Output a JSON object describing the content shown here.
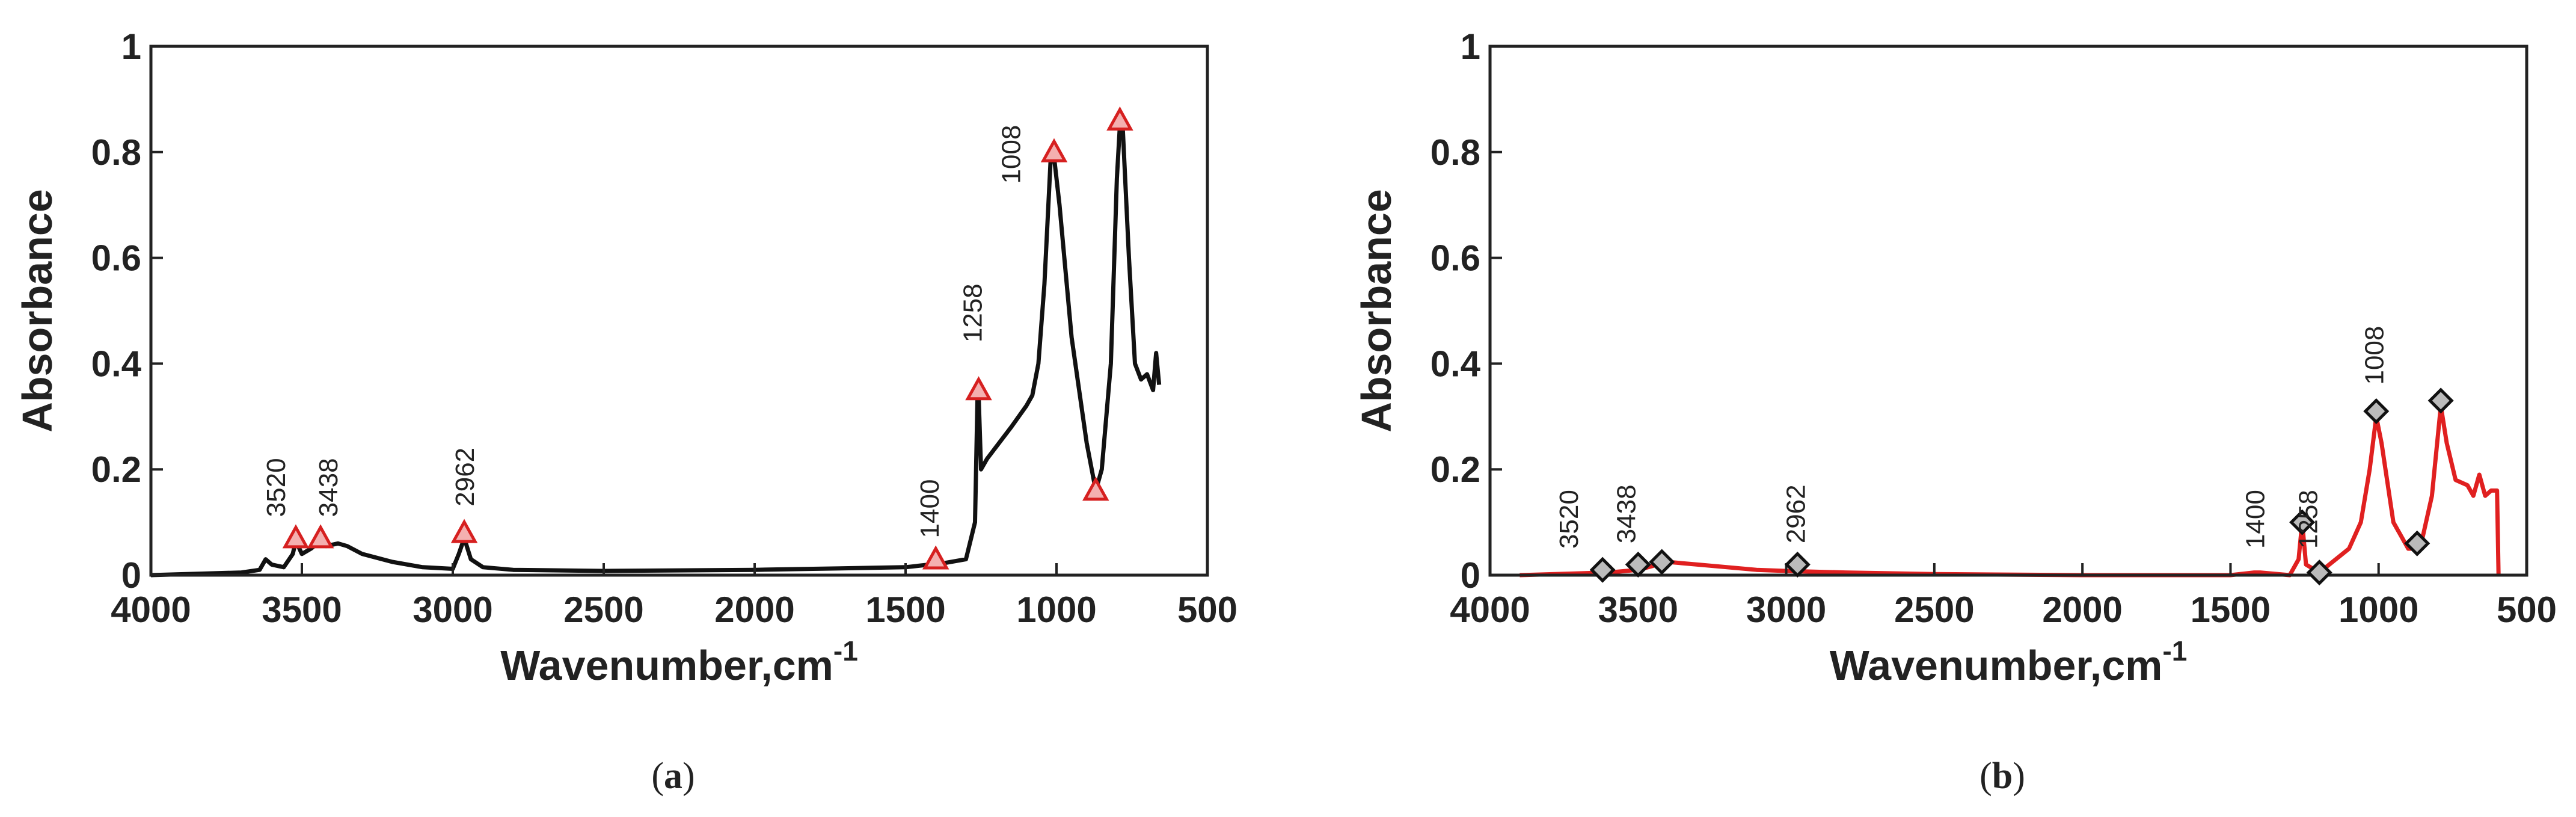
{
  "chart_data": [
    {
      "type": "line",
      "caption": "a",
      "ylabel": "Absorbance",
      "xlabel": "Wavenumber,cm",
      "xlabel_superscript": "-1",
      "xlim": [
        4000,
        500
      ],
      "ylim": [
        0,
        1
      ],
      "xticks": [
        4000,
        3500,
        3000,
        2500,
        2000,
        1500,
        1000,
        500
      ],
      "yticks": [
        0,
        0.2,
        0.4,
        0.6,
        0.8,
        1
      ],
      "series": [
        {
          "color": "#111111",
          "x": [
            4000,
            3700,
            3640,
            3620,
            3600,
            3560,
            3530,
            3520,
            3500,
            3470,
            3438,
            3420,
            3380,
            3350,
            3300,
            3200,
            3100,
            3000,
            2980,
            2962,
            2940,
            2900,
            2800,
            2500,
            2000,
            1500,
            1420,
            1400,
            1300,
            1270,
            1262,
            1258,
            1250,
            1230,
            1150,
            1100,
            1080,
            1060,
            1040,
            1020,
            1008,
            990,
            950,
            900,
            870,
            850,
            820,
            800,
            790,
            780,
            760,
            740,
            720,
            700,
            680,
            670,
            660
          ],
          "values": [
            0,
            0.005,
            0.01,
            0.03,
            0.02,
            0.015,
            0.04,
            0.065,
            0.04,
            0.05,
            0.065,
            0.055,
            0.06,
            0.055,
            0.04,
            0.025,
            0.015,
            0.012,
            0.04,
            0.07,
            0.03,
            0.015,
            0.01,
            0.008,
            0.01,
            0.015,
            0.02,
            0.02,
            0.03,
            0.1,
            0.33,
            0.34,
            0.2,
            0.22,
            0.28,
            0.32,
            0.34,
            0.4,
            0.55,
            0.78,
            0.79,
            0.7,
            0.45,
            0.25,
            0.16,
            0.2,
            0.4,
            0.75,
            0.85,
            0.84,
            0.6,
            0.4,
            0.37,
            0.38,
            0.35,
            0.42,
            0.36
          ]
        }
      ],
      "markers": {
        "shape": "triangle",
        "color": "#d62020",
        "fill": "#f4b0b0",
        "x": [
          3520,
          3438,
          2962,
          1400,
          1258,
          1008,
          870,
          790
        ],
        "values": [
          0.07,
          0.07,
          0.08,
          0.03,
          0.35,
          0.8,
          0.16,
          0.86
        ]
      },
      "annotations": [
        {
          "text": "3520",
          "x": 3586,
          "y": 0.11
        },
        {
          "text": "3438",
          "x": 3412,
          "y": 0.11
        },
        {
          "text": "2962",
          "x": 2960,
          "y": 0.13
        },
        {
          "text": "1400",
          "x": 1420,
          "y": 0.07
        },
        {
          "text": "1258",
          "x": 1278,
          "y": 0.44
        },
        {
          "text": "1008",
          "x": 1150,
          "y": 0.74
        }
      ]
    },
    {
      "type": "line",
      "caption": "b",
      "ylabel": "Absorbance",
      "xlabel": "Wavenumber,cm",
      "xlabel_superscript": "-1",
      "xlim": [
        4000,
        500
      ],
      "ylim": [
        0,
        1
      ],
      "xticks": [
        4000,
        3500,
        3000,
        2500,
        2000,
        1500,
        1000,
        500
      ],
      "yticks": [
        0,
        0.2,
        0.4,
        0.6,
        0.8,
        1
      ],
      "series": [
        {
          "color": "#e02020",
          "x": [
            3900,
            3600,
            3500,
            3400,
            3300,
            3100,
            3000,
            2800,
            2500,
            2000,
            1500,
            1420,
            1400,
            1300,
            1270,
            1258,
            1245,
            1200,
            1100,
            1060,
            1030,
            1008,
            990,
            950,
            900,
            860,
            820,
            790,
            770,
            740,
            700,
            680,
            660,
            640,
            620,
            600,
            595
          ],
          "values": [
            0,
            0.005,
            0.01,
            0.025,
            0.02,
            0.01,
            0.008,
            0.005,
            0.002,
            0,
            0,
            0.005,
            0.005,
            0,
            0.03,
            0.1,
            0.02,
            0.005,
            0.05,
            0.1,
            0.2,
            0.3,
            0.25,
            0.1,
            0.05,
            0.05,
            0.15,
            0.32,
            0.25,
            0.18,
            0.17,
            0.15,
            0.19,
            0.15,
            0.16,
            0.16,
            0
          ]
        }
      ],
      "markers": {
        "shape": "diamond",
        "color": "#111111",
        "fill": "#bbbbbb",
        "x": [
          3620,
          3500,
          3420,
          2962,
          1258,
          1200,
          1008,
          870,
          790
        ],
        "values": [
          0.01,
          0.02,
          0.025,
          0.02,
          0.1,
          0.005,
          0.31,
          0.06,
          0.33
        ]
      },
      "annotations": [
        {
          "text": "3520",
          "x": 3734,
          "y": 0.05
        },
        {
          "text": "3438",
          "x": 3540,
          "y": 0.06
        },
        {
          "text": "2962",
          "x": 2968,
          "y": 0.06
        },
        {
          "text": "1400",
          "x": 1417,
          "y": 0.05
        },
        {
          "text": "1258",
          "x": 1238,
          "y": 0.05
        },
        {
          "text": "1008",
          "x": 1015,
          "y": 0.36
        }
      ]
    }
  ]
}
